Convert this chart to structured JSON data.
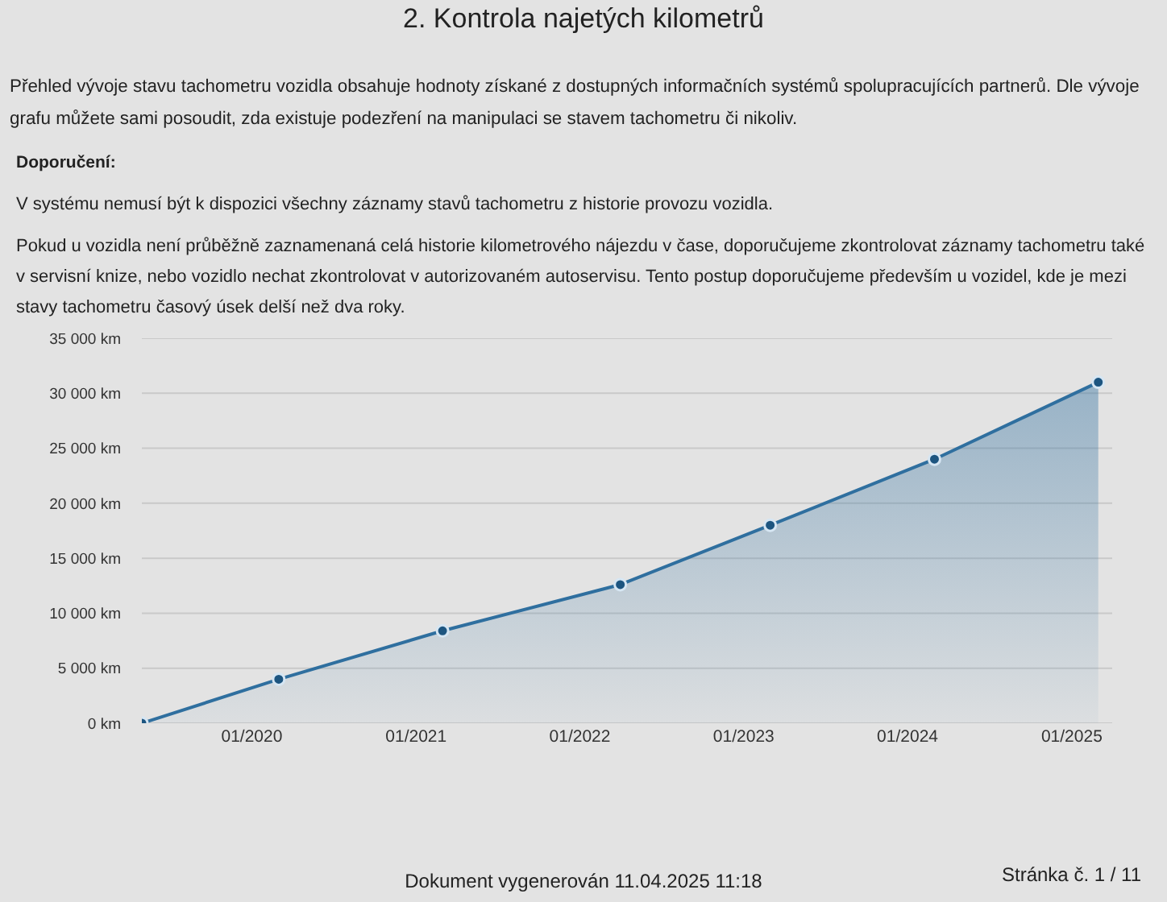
{
  "chart_data": {
    "type": "area",
    "title": "2. Kontrola najetých kilometrů",
    "subtitle": "Přehled vývoje stavu tachometru vozidla obsahuje hodnoty získané z dostupných informačních systémů spolupracujících partnerů. Dle vývoje grafu můžete sami posoudit, zda existuje podezření na manipulaci se stavem tachometru či nikoliv.",
    "x": [
      "2019-05",
      "2020-03",
      "2021-03",
      "2022-04",
      "2023-03",
      "2024-03",
      "2025-03"
    ],
    "series": [
      {
        "color": "#2f6f9f",
        "values": [
          0,
          4000,
          8400,
          12600,
          18000,
          24000,
          31000
        ]
      }
    ],
    "xlim": [
      "2019-05",
      "2025-04"
    ],
    "xticks": [
      {
        "value": "2020-01",
        "label": "01/2020"
      },
      {
        "value": "2021-01",
        "label": "01/2021"
      },
      {
        "value": "2022-01",
        "label": "01/2022"
      },
      {
        "value": "2023-01",
        "label": "01/2023"
      },
      {
        "value": "2024-01",
        "label": "01/2024"
      },
      {
        "value": "2025-01",
        "label": "01/2025"
      }
    ],
    "ylim": [
      0,
      35000
    ],
    "yticks": [
      {
        "value": 0,
        "label": "0 km"
      },
      {
        "value": 5000,
        "label": "5 000 km"
      },
      {
        "value": 10000,
        "label": "10 000 km"
      },
      {
        "value": 15000,
        "label": "15 000 km"
      },
      {
        "value": 20000,
        "label": "20 000 km"
      },
      {
        "value": 25000,
        "label": "25 000 km"
      },
      {
        "value": 30000,
        "label": "30 000 km"
      },
      {
        "value": 35000,
        "label": "35 000 km"
      }
    ],
    "grid": "y",
    "marker": "circle",
    "line_style": "solid",
    "annotations": [
      "Doporučení:",
      "V systému nemusí být k dispozici všechny záznamy stavů tachometru z historie provozu vozidla.",
      "Pokud u vozidla není průběžně zaznamenaná celá historie kilometrového nájezdu v čase, doporučujeme zkontrolovat záznamy tachometru také v servisní knize, nebo vozidlo nechat zkontrolovat v autorizovaném autoservisu. Tento postup doporučujeme především u vozidel, kde je mezi stavy tachometru časový úsek delší než dva roky.",
      "Dokument vygenerován 11.04.2025 11:18",
      "Stránka č. 1 / 11"
    ]
  }
}
